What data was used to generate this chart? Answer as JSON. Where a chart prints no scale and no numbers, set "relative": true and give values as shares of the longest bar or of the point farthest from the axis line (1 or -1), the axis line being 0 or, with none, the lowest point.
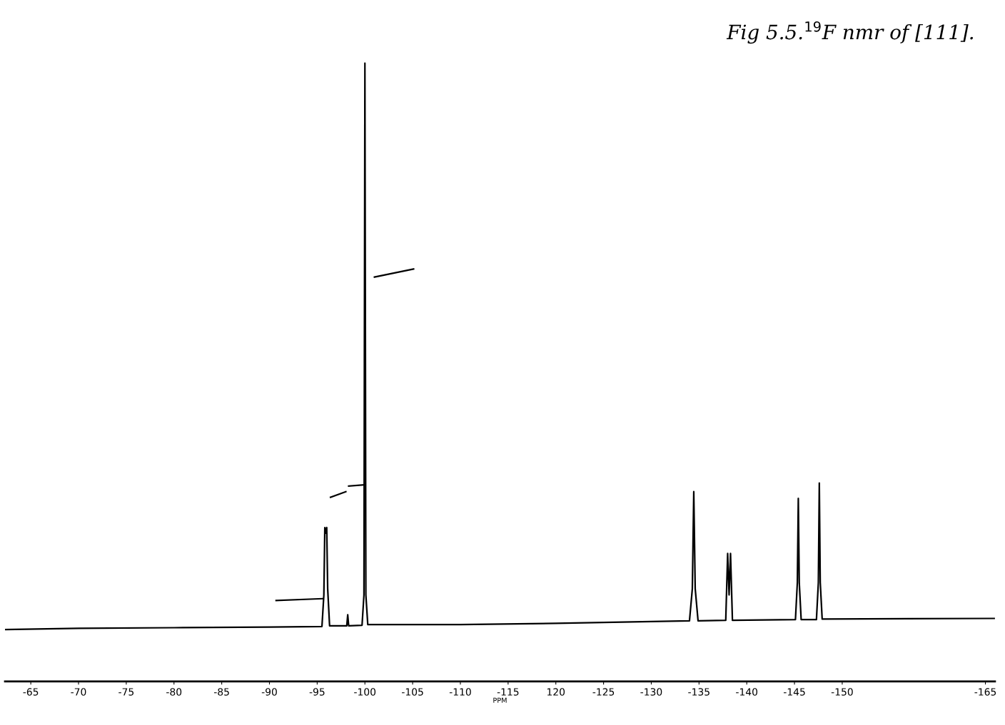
{
  "chart_data": {
    "type": "line",
    "title": "Fig 5.5.$^{19}$F nmr of [111].",
    "xlabel": "PPM",
    "relative": true,
    "grid": false,
    "legend": false,
    "marker": "none",
    "line_style": "solid",
    "tick_labels": "x",
    "xlim": [
      -62.3,
      -166
    ],
    "xticks": [
      {
        "value": -65,
        "label": "-65"
      },
      {
        "value": -70,
        "label": "-70"
      },
      {
        "value": -75,
        "label": "-75"
      },
      {
        "value": -80,
        "label": "-80"
      },
      {
        "value": -85,
        "label": "-85"
      },
      {
        "value": -90,
        "label": "-90"
      },
      {
        "value": -95,
        "label": "-95"
      },
      {
        "value": -100,
        "label": "-100"
      },
      {
        "value": -105,
        "label": "-105"
      },
      {
        "value": -110,
        "label": "-110"
      },
      {
        "value": -115,
        "label": "-115"
      },
      {
        "value": -120,
        "label": "120"
      },
      {
        "value": -125,
        "label": "-125"
      },
      {
        "value": -130,
        "label": "-130"
      },
      {
        "value": -135,
        "label": "-135"
      },
      {
        "value": -140,
        "label": "-140"
      },
      {
        "value": -145,
        "label": "-145"
      },
      {
        "value": -150,
        "label": "-150"
      },
      {
        "value": -165,
        "label": "-165"
      }
    ],
    "series": [
      {
        "color": "#000000",
        "x": [
          -62.3,
          -70,
          -80,
          -90,
          -95.5,
          -95.7,
          -95.8,
          -95.9,
          -96.0,
          -96.1,
          -96.3,
          -98.1,
          -98.2,
          -98.3,
          -99.7,
          -99.9,
          -100.0,
          -100.1,
          -100.3,
          -110,
          -120,
          -134.0,
          -134.3,
          -134.45,
          -134.6,
          -134.9,
          -137.8,
          -138.0,
          -138.15,
          -138.3,
          -138.5,
          -145.1,
          -145.3,
          -145.4,
          -145.5,
          -145.7,
          -147.3,
          -147.5,
          -147.6,
          -147.7,
          -147.9,
          -166
        ],
        "values": [
          0.084,
          0.086,
          0.087,
          0.088,
          0.089,
          0.14,
          0.249,
          0.24,
          0.249,
          0.15,
          0.09,
          0.09,
          0.108,
          0.09,
          0.091,
          0.14,
          1.0,
          0.14,
          0.092,
          0.092,
          0.094,
          0.098,
          0.15,
          0.307,
          0.15,
          0.098,
          0.099,
          0.207,
          0.14,
          0.207,
          0.099,
          0.1,
          0.16,
          0.296,
          0.16,
          0.1,
          0.1,
          0.16,
          0.321,
          0.16,
          0.101,
          0.102
        ]
      },
      {
        "color": "#000000",
        "x": [
          -90.7,
          -95.6,
          -96.0,
          -96.4,
          -98.0,
          -98.15,
          -98.3,
          -100.0,
          -100.5,
          -101.0,
          -105.1
        ],
        "values": [
          0.131,
          0.134,
          null,
          0.298,
          0.307,
          null,
          0.316,
          0.318,
          null,
          0.654,
          0.667
        ]
      }
    ]
  }
}
